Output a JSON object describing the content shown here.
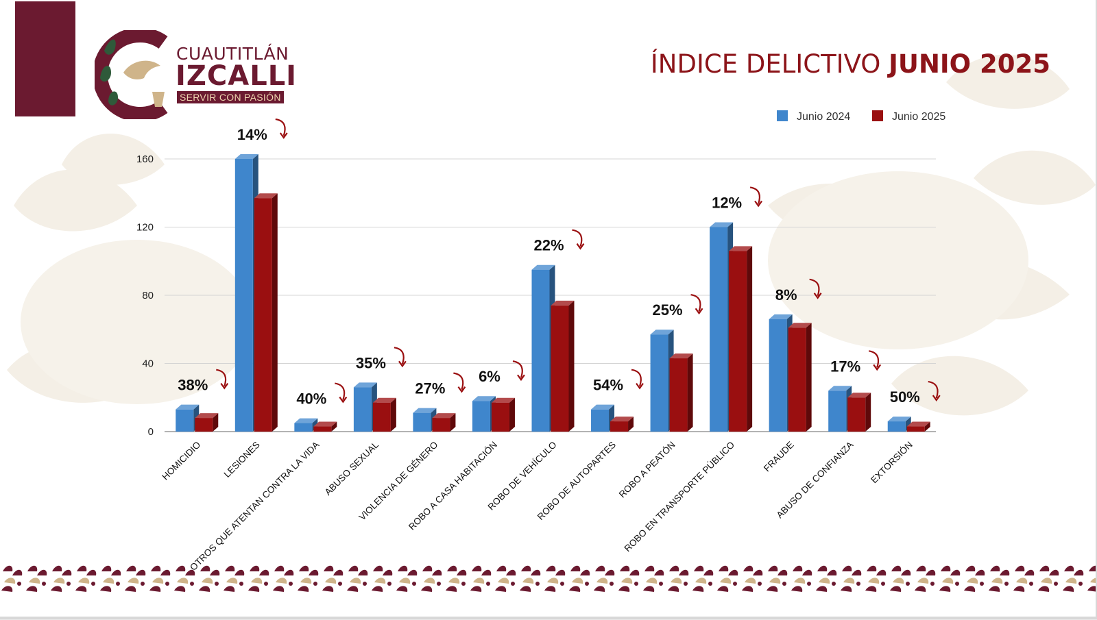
{
  "brand": {
    "line1": "CUAUTITLÁN",
    "line2": "IZCALLI",
    "slogan": "SERVIR CON PASIÓN"
  },
  "title": {
    "regular": "ÍNDICE DELICTIVO",
    "bold": "JUNIO 2025"
  },
  "colors": {
    "maroon": "#6b1a30",
    "title_red": "#8c1419",
    "series_2024": "#3f86cc",
    "series_2025": "#9a0f10",
    "arrow": "#9a0f10"
  },
  "chart_data": {
    "type": "bar",
    "categories": [
      "HOMICIDIO",
      "LESIONES",
      "OTROS QUE ATENTAN CONTRA LA VIDA",
      "ABUSO SEXUAL",
      "VIOLENCIA DE GÉNERO",
      "ROBO A CASA HABITACIÓN",
      "ROBO DE VEHÍCULO",
      "ROBO DE AUTOPARTES",
      "ROBO A PEATÓN",
      "ROBO EN TRANSPORTE PÚBLICO",
      "FRAUDE",
      "ABUSO DE CONFIANZA",
      "EXTORSIÓN"
    ],
    "series": [
      {
        "name": "Junio 2024",
        "values": [
          13,
          160,
          5,
          26,
          11,
          18,
          95,
          13,
          57,
          120,
          66,
          24,
          6
        ]
      },
      {
        "name": "Junio 2025",
        "values": [
          8,
          137,
          3,
          17,
          8,
          17,
          74,
          6,
          43,
          106,
          61,
          20,
          3
        ]
      }
    ],
    "change_labels": [
      "38%",
      "14%",
      "40%",
      "35%",
      "27%",
      "6%",
      "22%",
      "54%",
      "25%",
      "12%",
      "8%",
      "17%",
      "50%"
    ],
    "change_direction": "down",
    "ylim": [
      0,
      160
    ],
    "yticks": [
      0,
      40,
      80,
      120,
      160
    ],
    "grid": true,
    "legend_position": "top-right",
    "style": "3d-column"
  }
}
